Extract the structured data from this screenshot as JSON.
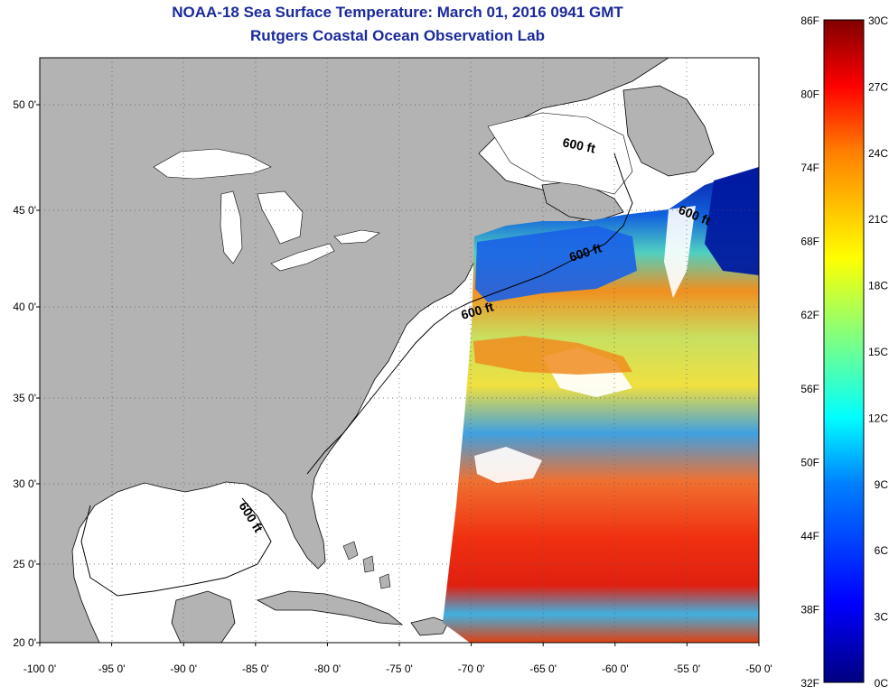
{
  "title": "NOAA-18 Sea Surface Temperature:  March 01, 2016 0941 GMT",
  "subtitle": "Rutgers Coastal Ocean Observation Lab",
  "lat_ticks": [
    {
      "value": 50,
      "label": "50 0'"
    },
    {
      "value": 45,
      "label": "45 0'"
    },
    {
      "value": 40,
      "label": "40 0'"
    },
    {
      "value": 35,
      "label": "35 0'"
    },
    {
      "value": 30,
      "label": "30 0'"
    },
    {
      "value": 25,
      "label": "25 0'"
    },
    {
      "value": 20,
      "label": "20 0'"
    }
  ],
  "lon_ticks": [
    {
      "value": -100,
      "label": "-100 0'"
    },
    {
      "value": -95,
      "label": "-95 0'"
    },
    {
      "value": -90,
      "label": "-90 0'"
    },
    {
      "value": -85,
      "label": "-85 0'"
    },
    {
      "value": -80,
      "label": "-80 0'"
    },
    {
      "value": -75,
      "label": "-75 0'"
    },
    {
      "value": -70,
      "label": "-70 0'"
    },
    {
      "value": -65,
      "label": "-65 0'"
    },
    {
      "value": -60,
      "label": "-60 0'"
    },
    {
      "value": -55,
      "label": "-55 0'"
    },
    {
      "value": -50,
      "label": "-50 0'"
    }
  ],
  "depth_label": "600 ft",
  "colorbar": {
    "f_labels": [
      "86F",
      "80F",
      "74F",
      "68F",
      "62F",
      "56F",
      "50F",
      "44F",
      "38F",
      "32F"
    ],
    "c_labels": [
      "30C",
      "27C",
      "24C",
      "21C",
      "18C",
      "15C",
      "12C",
      "9C",
      "6C",
      "3C",
      "0C"
    ],
    "colors": [
      "#000080",
      "#0000ff",
      "#0080ff",
      "#00ffff",
      "#80ff80",
      "#ffff00",
      "#ff8000",
      "#ff0000",
      "#800000"
    ]
  },
  "colors": {
    "title": "#1a2a9c",
    "land": "#b3b3b3",
    "ocean_nodata": "#ffffff"
  }
}
